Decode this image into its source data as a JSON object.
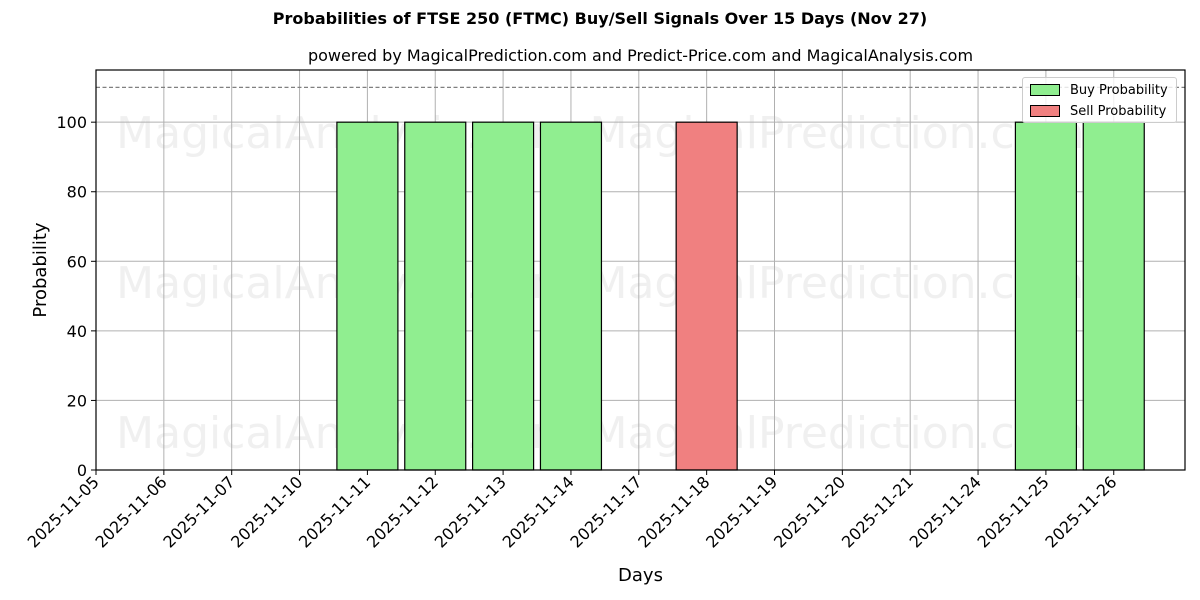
{
  "chart_data": {
    "type": "bar",
    "title": "Probabilities of FTSE 250 (FTMC) Buy/Sell Signals Over 15 Days (Nov 27)",
    "subtitle": "powered by MagicalPrediction.com and Predict-Price.com and MagicalAnalysis.com",
    "xlabel": "Days",
    "ylabel": "Probability",
    "ylim": [
      0,
      115
    ],
    "yticks": [
      0,
      20,
      40,
      60,
      80,
      100
    ],
    "grid": true,
    "legend_position": "upper right",
    "reference_line": {
      "y": 110,
      "style": "dashed",
      "color": "#808080"
    },
    "categories": [
      "2025-11-05",
      "2025-11-06",
      "2025-11-07",
      "2025-11-10",
      "2025-11-11",
      "2025-11-12",
      "2025-11-13",
      "2025-11-14",
      "2025-11-17",
      "2025-11-18",
      "2025-11-19",
      "2025-11-20",
      "2025-11-21",
      "2025-11-24",
      "2025-11-25",
      "2025-11-26"
    ],
    "series": [
      {
        "name": "Buy Probability",
        "color": "#90ee90",
        "values": [
          0,
          0,
          0,
          0,
          100,
          100,
          100,
          100,
          0,
          0,
          0,
          0,
          0,
          0,
          100,
          100
        ]
      },
      {
        "name": "Sell Probability",
        "color": "#f08080",
        "values": [
          0,
          0,
          0,
          0,
          0,
          0,
          0,
          0,
          0,
          100,
          0,
          0,
          0,
          0,
          0,
          0
        ]
      }
    ],
    "watermarks": [
      "MagicalAnalysis.com",
      "MagicalPrediction.com"
    ]
  }
}
